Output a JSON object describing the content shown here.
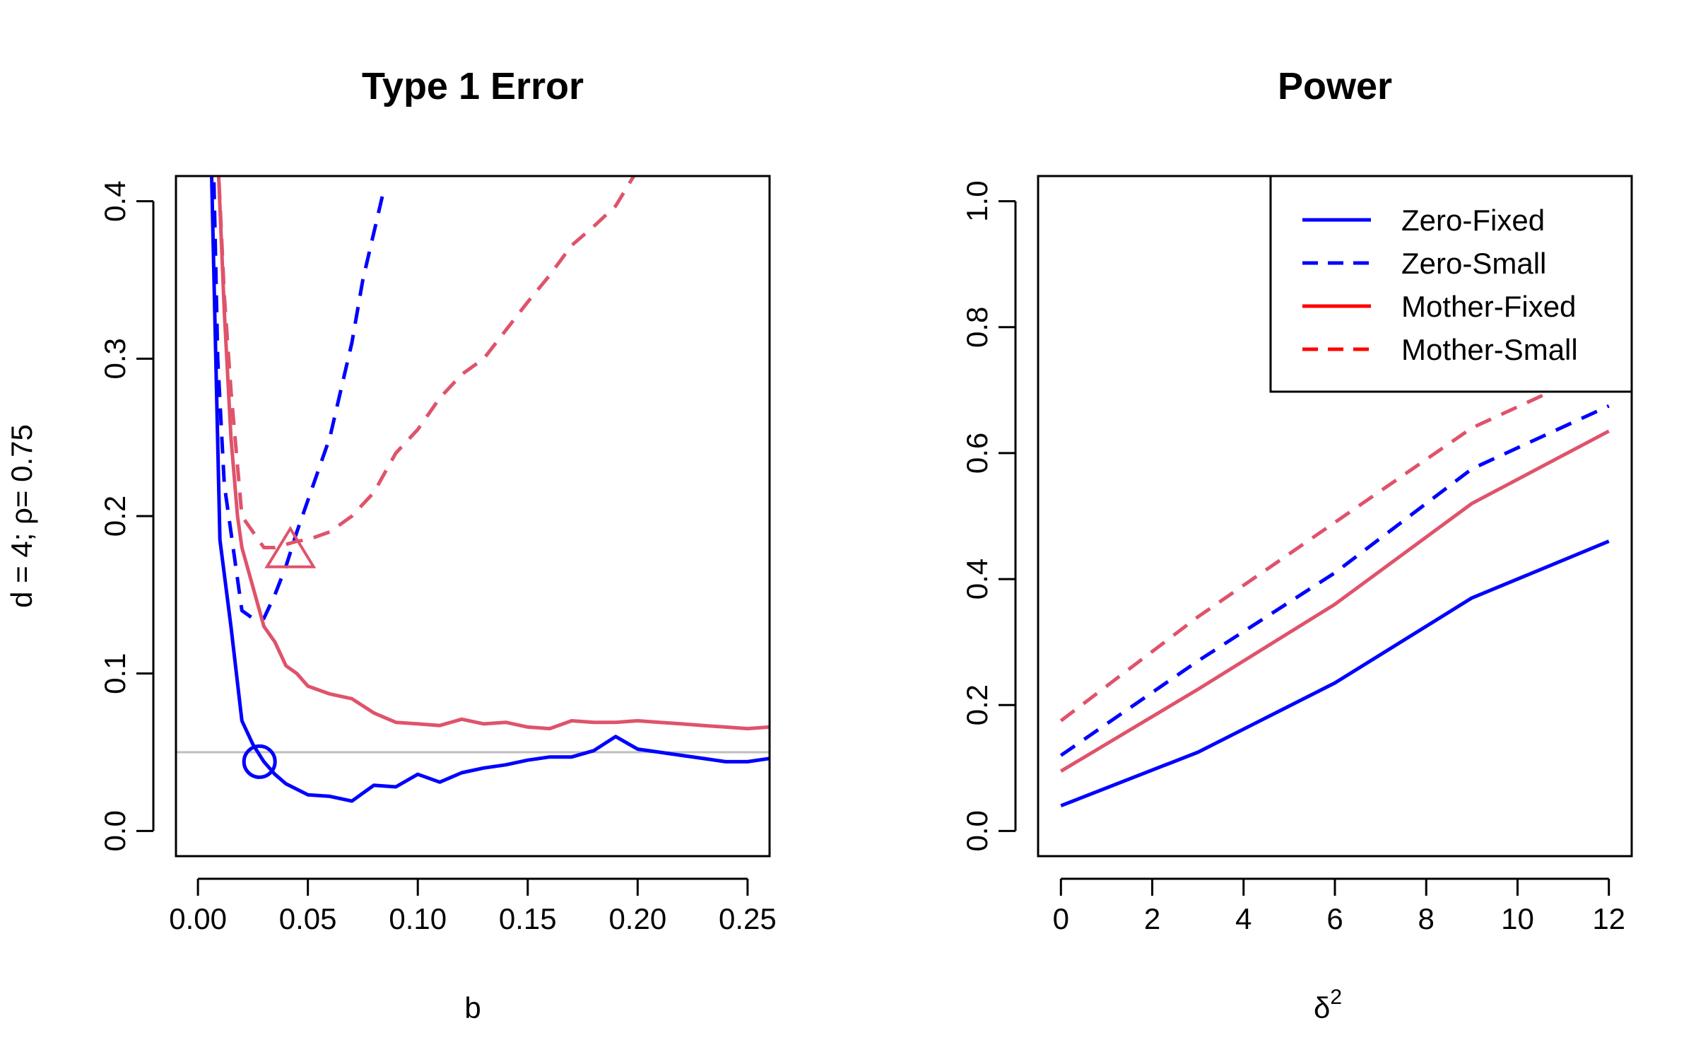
{
  "colors": {
    "blue": "#0000ff",
    "red": "#df536b",
    "legend_red": "#ff0000",
    "refline": "#bebebe"
  },
  "left_ylabel": "d = 4; ρ= 0.75",
  "chart_data": [
    {
      "type": "line",
      "title": "Type 1 Error",
      "xlabel": "b",
      "ylabel": "",
      "xlim": [
        -0.01,
        0.26
      ],
      "ylim": [
        -0.016,
        0.416
      ],
      "xticks": [
        "0.00",
        "0.05",
        "0.10",
        "0.15",
        "0.20",
        "0.25"
      ],
      "xtick_values": [
        0,
        0.05,
        0.1,
        0.15,
        0.2,
        0.25
      ],
      "yticks": [
        "0.0",
        "0.1",
        "0.2",
        "0.3",
        "0.4"
      ],
      "ytick_values": [
        0,
        0.1,
        0.2,
        0.3,
        0.4
      ],
      "reference_line": {
        "y": 0.05
      },
      "series": [
        {
          "name": "Zero-Fixed",
          "color": "blue",
          "dash": false,
          "x": [
            0.006,
            0.01,
            0.015,
            0.02,
            0.025,
            0.03,
            0.035,
            0.04,
            0.05,
            0.06,
            0.07,
            0.08,
            0.09,
            0.1,
            0.11,
            0.12,
            0.13,
            0.14,
            0.15,
            0.16,
            0.17,
            0.18,
            0.19,
            0.2,
            0.21,
            0.22,
            0.23,
            0.24,
            0.25,
            0.26
          ],
          "y": [
            0.43,
            0.185,
            0.13,
            0.07,
            0.055,
            0.044,
            0.036,
            0.03,
            0.023,
            0.022,
            0.019,
            0.029,
            0.028,
            0.036,
            0.031,
            0.037,
            0.04,
            0.042,
            0.045,
            0.047,
            0.047,
            0.051,
            0.06,
            0.052,
            0.05,
            0.048,
            0.046,
            0.044,
            0.044,
            0.046
          ]
        },
        {
          "name": "Zero-Small",
          "color": "blue",
          "dash": true,
          "x": [
            0.007,
            0.009,
            0.012,
            0.015,
            0.02,
            0.025,
            0.03,
            0.035,
            0.04,
            0.045,
            0.05,
            0.055,
            0.06,
            0.065,
            0.07,
            0.075,
            0.08,
            0.085
          ],
          "y": [
            0.43,
            0.3,
            0.22,
            0.19,
            0.14,
            0.135,
            0.135,
            0.15,
            0.168,
            0.19,
            0.21,
            0.23,
            0.25,
            0.28,
            0.31,
            0.35,
            0.38,
            0.41
          ]
        },
        {
          "name": "Mother-Fixed",
          "color": "red",
          "dash": false,
          "x": [
            0.009,
            0.012,
            0.015,
            0.018,
            0.02,
            0.025,
            0.03,
            0.035,
            0.04,
            0.045,
            0.05,
            0.06,
            0.07,
            0.08,
            0.09,
            0.1,
            0.11,
            0.12,
            0.13,
            0.14,
            0.15,
            0.16,
            0.17,
            0.18,
            0.19,
            0.2,
            0.21,
            0.22,
            0.23,
            0.24,
            0.25,
            0.26
          ],
          "y": [
            0.43,
            0.33,
            0.25,
            0.2,
            0.18,
            0.155,
            0.13,
            0.12,
            0.105,
            0.1,
            0.092,
            0.087,
            0.084,
            0.075,
            0.069,
            0.068,
            0.067,
            0.071,
            0.068,
            0.069,
            0.066,
            0.065,
            0.07,
            0.069,
            0.069,
            0.07,
            0.069,
            0.068,
            0.067,
            0.066,
            0.065,
            0.066
          ]
        },
        {
          "name": "Mother-Small",
          "color": "red",
          "dash": true,
          "x": [
            0.009,
            0.012,
            0.015,
            0.02,
            0.025,
            0.03,
            0.035,
            0.04,
            0.045,
            0.05,
            0.06,
            0.07,
            0.08,
            0.09,
            0.1,
            0.11,
            0.12,
            0.13,
            0.14,
            0.15,
            0.16,
            0.17,
            0.18,
            0.19,
            0.2
          ],
          "y": [
            0.43,
            0.34,
            0.28,
            0.2,
            0.19,
            0.18,
            0.18,
            0.182,
            0.184,
            0.185,
            0.19,
            0.2,
            0.215,
            0.24,
            0.255,
            0.275,
            0.29,
            0.3,
            0.318,
            0.336,
            0.353,
            0.372,
            0.384,
            0.397,
            0.42
          ]
        }
      ],
      "markers": [
        {
          "shape": "circle",
          "color": "blue",
          "x": 0.028,
          "y": 0.044
        },
        {
          "shape": "triangle",
          "color": "red",
          "x": 0.042,
          "y": 0.179
        }
      ]
    },
    {
      "type": "line",
      "title": "Power",
      "xlabel": "δ",
      "xlabel_sup": "2",
      "ylabel": "",
      "xlim": [
        -0.5,
        12.5
      ],
      "ylim": [
        -0.04,
        1.04
      ],
      "xticks": [
        "0",
        "2",
        "4",
        "6",
        "8",
        "10",
        "12"
      ],
      "xtick_values": [
        0,
        2,
        4,
        6,
        8,
        10,
        12
      ],
      "yticks": [
        "0.0",
        "0.2",
        "0.4",
        "0.6",
        "0.8",
        "1.0"
      ],
      "ytick_values": [
        0,
        0.2,
        0.4,
        0.6,
        0.8,
        1.0
      ],
      "legend": {
        "position": "top-right",
        "entries": [
          {
            "label": "Zero-Fixed",
            "color": "blue",
            "dash": false
          },
          {
            "label": "Zero-Small",
            "color": "blue",
            "dash": true
          },
          {
            "label": "Mother-Fixed",
            "color": "legend_red",
            "dash": false
          },
          {
            "label": "Mother-Small",
            "color": "legend_red",
            "dash": true
          }
        ]
      },
      "series": [
        {
          "name": "Zero-Fixed",
          "color": "blue",
          "dash": false,
          "x": [
            0,
            3,
            6,
            9,
            12
          ],
          "y": [
            0.04,
            0.125,
            0.235,
            0.37,
            0.46
          ]
        },
        {
          "name": "Zero-Small",
          "color": "blue",
          "dash": true,
          "x": [
            0,
            3,
            6,
            9,
            12
          ],
          "y": [
            0.12,
            0.27,
            0.41,
            0.575,
            0.675
          ]
        },
        {
          "name": "Mother-Fixed",
          "color": "red",
          "dash": false,
          "x": [
            0,
            3,
            6,
            9,
            12
          ],
          "y": [
            0.095,
            0.225,
            0.36,
            0.52,
            0.635
          ]
        },
        {
          "name": "Mother-Small",
          "color": "red",
          "dash": true,
          "x": [
            0,
            3,
            6,
            9,
            12
          ],
          "y": [
            0.175,
            0.34,
            0.49,
            0.64,
            0.74
          ]
        }
      ]
    }
  ]
}
